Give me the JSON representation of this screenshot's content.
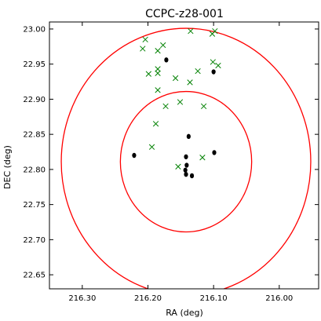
{
  "chart_data": {
    "type": "scatter",
    "title": "CCPC-z28-001",
    "xlabel": "RA (deg)",
    "ylabel": "DEC (deg)",
    "xlim": [
      216.35,
      215.94
    ],
    "ylim": [
      22.63,
      23.01
    ],
    "x_inverted": true,
    "grid": false,
    "legend": "none",
    "xticks": [
      216.3,
      216.2,
      216.1,
      216.0
    ],
    "xtick_labels": [
      "216.30",
      "216.20",
      "216.10",
      "216.00"
    ],
    "yticks": [
      22.65,
      22.7,
      22.75,
      22.8,
      22.85,
      22.9,
      22.95,
      23.0
    ],
    "ytick_labels": [
      "22.65",
      "22.70",
      "22.75",
      "22.80",
      "22.85",
      "22.90",
      "22.95",
      "23.00"
    ],
    "circles": [
      {
        "center": [
          216.142,
          22.811
        ],
        "radius_deg": 0.1,
        "color": "#ff0000"
      },
      {
        "center": [
          216.142,
          22.811
        ],
        "radius_deg": 0.19,
        "color": "#ff0000"
      }
    ],
    "series": [
      {
        "marker": "dot",
        "color": "#000000",
        "points": [
          [
            216.172,
            22.956
          ],
          [
            216.1,
            22.939
          ],
          [
            216.138,
            22.847
          ],
          [
            216.221,
            22.82
          ],
          [
            216.099,
            22.824
          ],
          [
            216.142,
            22.818
          ],
          [
            216.141,
            22.806
          ],
          [
            216.143,
            22.799
          ],
          [
            216.142,
            22.793
          ],
          [
            216.133,
            22.791
          ]
        ]
      },
      {
        "marker": "x",
        "color": "#008000",
        "points": [
          [
            216.204,
            22.985
          ],
          [
            216.208,
            22.972
          ],
          [
            216.177,
            22.977
          ],
          [
            216.185,
            22.969
          ],
          [
            216.135,
            22.997
          ],
          [
            216.102,
            22.993
          ],
          [
            216.098,
            22.997
          ],
          [
            216.101,
            22.953
          ],
          [
            216.093,
            22.948
          ],
          [
            216.185,
            22.943
          ],
          [
            216.199,
            22.936
          ],
          [
            216.185,
            22.937
          ],
          [
            216.158,
            22.93
          ],
          [
            216.124,
            22.94
          ],
          [
            216.136,
            22.924
          ],
          [
            216.185,
            22.913
          ],
          [
            216.151,
            22.896
          ],
          [
            216.173,
            22.89
          ],
          [
            216.115,
            22.89
          ],
          [
            216.188,
            22.865
          ],
          [
            216.194,
            22.832
          ],
          [
            216.154,
            22.804
          ],
          [
            216.117,
            22.817
          ]
        ]
      }
    ]
  }
}
